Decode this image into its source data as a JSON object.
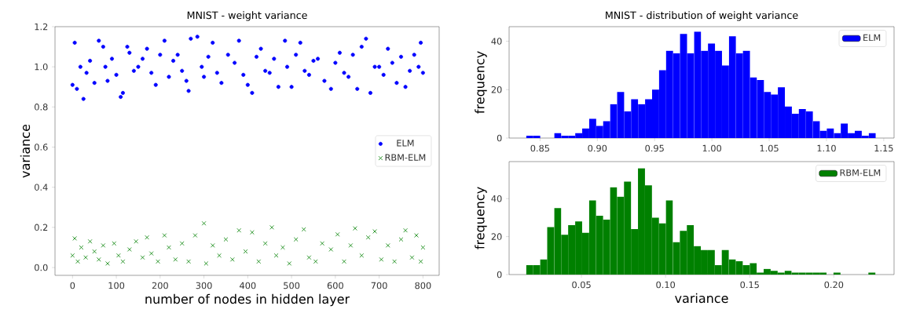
{
  "chart_data": [
    {
      "type": "scatter",
      "title": "MNIST - weight variance",
      "xlabel": "number of nodes in hidden layer",
      "ylabel": "variance",
      "xlim": [
        -40,
        837
      ],
      "ylim": [
        -0.039,
        1.2
      ],
      "xticks": [
        0,
        100,
        200,
        300,
        400,
        500,
        600,
        700,
        800
      ],
      "yticks": [
        {
          "value": 0,
          "label": "0.0"
        },
        0.2,
        0.4,
        0.6,
        0.8,
        {
          "value": 1,
          "label": "1.0"
        },
        1.2
      ],
      "legend": "right",
      "series": [
        {
          "name": "ELM",
          "color": "#0000ff",
          "marker": "circle",
          "x": [
            0,
            5,
            10,
            18,
            25,
            32,
            40,
            50,
            60,
            70,
            75,
            80,
            90,
            100,
            110,
            115,
            125,
            130,
            140,
            150,
            160,
            170,
            180,
            190,
            200,
            210,
            220,
            230,
            240,
            250,
            260,
            265,
            270,
            285,
            295,
            300,
            310,
            320,
            330,
            340,
            355,
            370,
            380,
            390,
            400,
            410,
            420,
            430,
            440,
            450,
            460,
            470,
            485,
            490,
            500,
            510,
            520,
            530,
            540,
            550,
            560,
            575,
            590,
            600,
            610,
            620,
            630,
            640,
            650,
            660,
            670,
            680,
            690,
            700,
            710,
            720,
            730,
            740,
            750,
            760,
            770,
            780,
            790,
            795,
            800
          ],
          "values": [
            0.91,
            1.12,
            0.89,
            1.0,
            0.84,
            0.97,
            1.03,
            0.92,
            1.13,
            1.1,
            1.0,
            0.93,
            1.04,
            0.96,
            0.85,
            0.87,
            1.1,
            1.07,
            0.98,
            1.0,
            1.04,
            1.09,
            0.97,
            0.91,
            1.06,
            1.13,
            0.95,
            1.03,
            1.06,
            0.98,
            0.93,
            0.88,
            1.14,
            1.15,
            1.0,
            0.95,
            1.05,
            1.12,
            0.97,
            0.92,
            1.06,
            1.02,
            1.13,
            0.96,
            0.91,
            0.87,
            1.05,
            1.09,
            0.98,
            0.97,
            1.04,
            0.9,
            1.13,
            1.0,
            0.9,
            1.06,
            1.12,
            0.98,
            0.96,
            1.03,
            1.04,
            0.93,
            0.89,
            1.02,
            1.07,
            0.97,
            0.95,
            1.06,
            0.89,
            1.1,
            1.14,
            0.87,
            1.0,
            1.0,
            0.96,
            1.09,
            1.02,
            0.92,
            1.05,
            0.9,
            0.98,
            1.06,
            1.0,
            1.12,
            0.97
          ]
        },
        {
          "name": "RBM-ELM",
          "color": "#008000",
          "marker": "cross",
          "x": [
            0,
            5,
            12,
            20,
            30,
            40,
            50,
            60,
            70,
            80,
            95,
            105,
            115,
            130,
            145,
            160,
            170,
            180,
            195,
            210,
            220,
            235,
            250,
            265,
            280,
            300,
            305,
            320,
            335,
            350,
            365,
            380,
            395,
            410,
            425,
            440,
            455,
            465,
            480,
            495,
            510,
            528,
            540,
            555,
            570,
            590,
            605,
            620,
            635,
            645,
            660,
            675,
            690,
            705,
            720,
            735,
            750,
            760,
            775,
            785,
            795,
            800
          ],
          "values": [
            0.06,
            0.145,
            0.03,
            0.1,
            0.05,
            0.13,
            0.08,
            0.04,
            0.11,
            0.02,
            0.12,
            0.06,
            0.03,
            0.09,
            0.13,
            0.05,
            0.15,
            0.07,
            0.03,
            0.16,
            0.1,
            0.04,
            0.12,
            0.03,
            0.16,
            0.22,
            0.02,
            0.11,
            0.06,
            0.14,
            0.04,
            0.185,
            0.08,
            0.175,
            0.03,
            0.12,
            0.2,
            0.06,
            0.1,
            0.02,
            0.14,
            0.19,
            0.05,
            0.03,
            0.12,
            0.09,
            0.165,
            0.03,
            0.11,
            0.195,
            0.06,
            0.15,
            0.18,
            0.04,
            0.11,
            0.03,
            0.14,
            0.185,
            0.05,
            0.16,
            0.03,
            0.1
          ]
        }
      ]
    },
    {
      "type": "histogram",
      "title": "MNIST - distribution of weight variance",
      "ylabel": "frequency",
      "xlim": [
        0.823,
        1.159
      ],
      "ylim": [
        0,
        46
      ],
      "xticks": [
        0.85,
        {
          "value": 0.9,
          "label": "0.90"
        },
        0.95,
        {
          "value": 1.0,
          "label": "1.00"
        },
        1.05,
        {
          "value": 1.1,
          "label": "1.10"
        },
        1.15
      ],
      "yticks": [
        0,
        20,
        40
      ],
      "legend": "top right",
      "bins": [
        0.838,
        0.8441,
        0.8502,
        0.8563,
        0.8624,
        0.8685,
        0.8746,
        0.8807,
        0.8868,
        0.8929,
        0.899,
        0.9051,
        0.9112,
        0.9173,
        0.9234,
        0.9295,
        0.9356,
        0.9417,
        0.9478,
        0.9539,
        0.96,
        0.9661,
        0.9722,
        0.9783,
        0.9844,
        0.9905,
        0.9966,
        1.0027,
        1.0088,
        1.0149,
        1.021,
        1.0271,
        1.0332,
        1.0393,
        1.0454,
        1.0515,
        1.0576,
        1.0637,
        1.0698,
        1.0759,
        1.082,
        1.0881,
        1.0942,
        1.1003,
        1.1064,
        1.1125,
        1.1186,
        1.1247,
        1.1308,
        1.1369,
        1.143
      ],
      "series": [
        {
          "name": "ELM",
          "color": "#0000ff",
          "values": [
            1,
            1,
            0,
            0,
            2,
            1,
            1,
            2,
            4,
            8,
            5,
            7,
            14,
            19,
            11,
            16,
            14,
            16,
            20,
            28,
            36,
            35,
            43,
            35,
            44,
            36,
            39,
            36,
            30,
            42,
            35,
            36,
            25,
            24,
            19,
            18,
            21,
            13,
            10,
            12,
            11,
            7,
            3,
            4,
            2,
            6,
            2,
            3,
            1,
            2
          ]
        }
      ]
    },
    {
      "type": "histogram",
      "xlabel": "variance",
      "ylabel": "frequency",
      "xlim": [
        0.007,
        0.2358
      ],
      "ylim": [
        0,
        59.5
      ],
      "xticks": [
        0.05,
        {
          "value": 0.1,
          "label": "0.10"
        },
        0.15,
        {
          "value": 0.2,
          "label": "0.20"
        }
      ],
      "yticks": [
        0,
        20,
        40
      ],
      "legend": "top right",
      "bins": [
        0.0172,
        0.02135,
        0.0255,
        0.02965,
        0.0338,
        0.03795,
        0.0421,
        0.04625,
        0.0504,
        0.05455,
        0.0587,
        0.06285,
        0.067,
        0.07115,
        0.0753,
        0.07945,
        0.0836,
        0.08775,
        0.0919,
        0.09605,
        0.1002,
        0.10435,
        0.1085,
        0.11265,
        0.1168,
        0.12095,
        0.1251,
        0.12925,
        0.1334,
        0.13755,
        0.1417,
        0.14585,
        0.15,
        0.15415,
        0.1583,
        0.16245,
        0.1666,
        0.17075,
        0.1749,
        0.17905,
        0.1832,
        0.18735,
        0.1915,
        0.19565,
        0.1998,
        0.20395,
        0.2081,
        0.21225,
        0.2164,
        0.22055,
        0.2247
      ],
      "series": [
        {
          "name": "RBM-ELM",
          "color": "#008000",
          "values": [
            5,
            5,
            8,
            25,
            35,
            21,
            26,
            28,
            22,
            39,
            31,
            29,
            46,
            41,
            49,
            24,
            56,
            47,
            30,
            27,
            39,
            17,
            23,
            26,
            15,
            13,
            13,
            5,
            13,
            8,
            7,
            5,
            6,
            1,
            3,
            2,
            1,
            2,
            1,
            1,
            1,
            1,
            1,
            0,
            1,
            0,
            0,
            0,
            0,
            1
          ]
        }
      ]
    }
  ]
}
